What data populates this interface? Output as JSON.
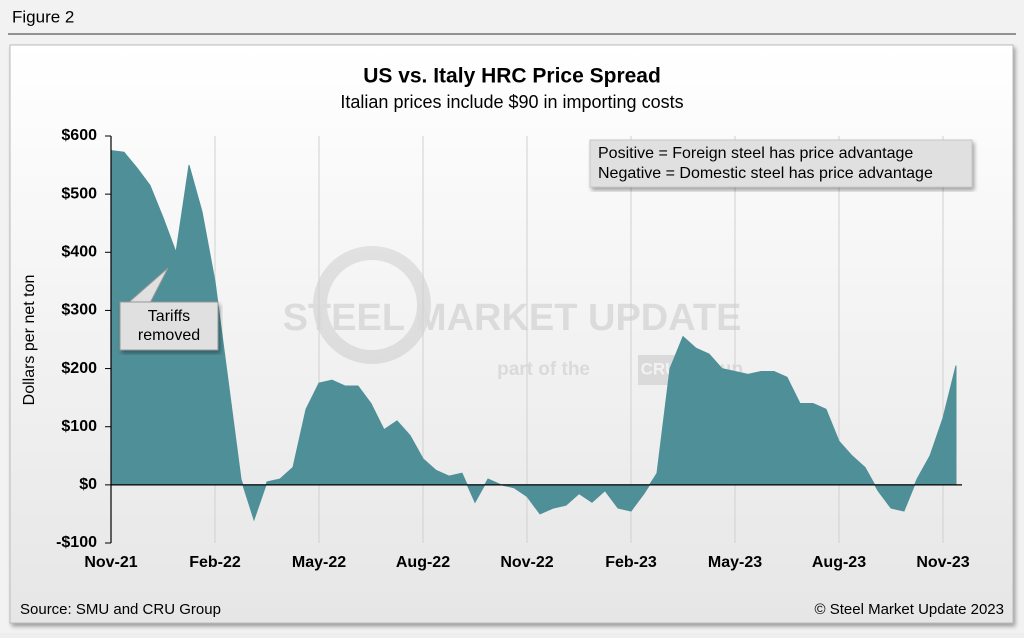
{
  "figure_label": "Figure 2",
  "chart_data": {
    "type": "area",
    "title": "US vs. Italy HRC Price Spread",
    "subtitle": "Italian prices include $90 in importing costs",
    "y_label": "Dollars per net ton",
    "categories": [
      "Nov-21",
      null,
      null,
      null,
      null,
      null,
      null,
      null,
      "Feb-22",
      null,
      null,
      null,
      null,
      null,
      null,
      null,
      "May-22",
      null,
      null,
      null,
      null,
      null,
      null,
      null,
      "Aug-22",
      null,
      null,
      null,
      null,
      null,
      null,
      null,
      "Nov-22",
      null,
      null,
      null,
      null,
      null,
      null,
      null,
      "Feb-23",
      null,
      null,
      null,
      null,
      null,
      null,
      null,
      "May-23",
      null,
      null,
      null,
      null,
      null,
      null,
      null,
      "Aug-23",
      null,
      null,
      null,
      null,
      null,
      null,
      null,
      "Nov-23",
      null
    ],
    "values": [
      575,
      572,
      545,
      515,
      460,
      400,
      550,
      470,
      350,
      180,
      10,
      -60,
      5,
      10,
      30,
      130,
      175,
      180,
      170,
      170,
      140,
      95,
      110,
      85,
      45,
      25,
      15,
      20,
      -30,
      10,
      0,
      -5,
      -20,
      -50,
      -40,
      -35,
      -15,
      -30,
      -10,
      -40,
      -45,
      -15,
      20,
      200,
      255,
      235,
      225,
      200,
      195,
      190,
      195,
      195,
      185,
      140,
      140,
      130,
      75,
      50,
      30,
      -10,
      -40,
      -45,
      10,
      50,
      115,
      205
    ],
    "color": "#4f8f98",
    "ylim": [
      -100,
      600
    ],
    "yticks": [
      {
        "value": -100,
        "label": "-$100"
      },
      {
        "value": 0,
        "label": "$0"
      },
      {
        "value": 100,
        "label": "$100"
      },
      {
        "value": 200,
        "label": "$200"
      },
      {
        "value": 300,
        "label": "$300"
      },
      {
        "value": 400,
        "label": "$400"
      },
      {
        "value": 500,
        "label": "$500"
      },
      {
        "value": 600,
        "label": "$600"
      }
    ],
    "grid": "vertical",
    "note": [
      "Positive = Foreign steel has price advantage",
      "Negative = Domestic steel has price advantage"
    ],
    "annotation": "Tariffs removed",
    "watermark": [
      "STEEL MARKET UPDATE",
      "part of the",
      "CRU",
      "Group"
    ],
    "source": "Source: SMU and CRU Group",
    "copyright": "© Steel Market Update 2023"
  }
}
